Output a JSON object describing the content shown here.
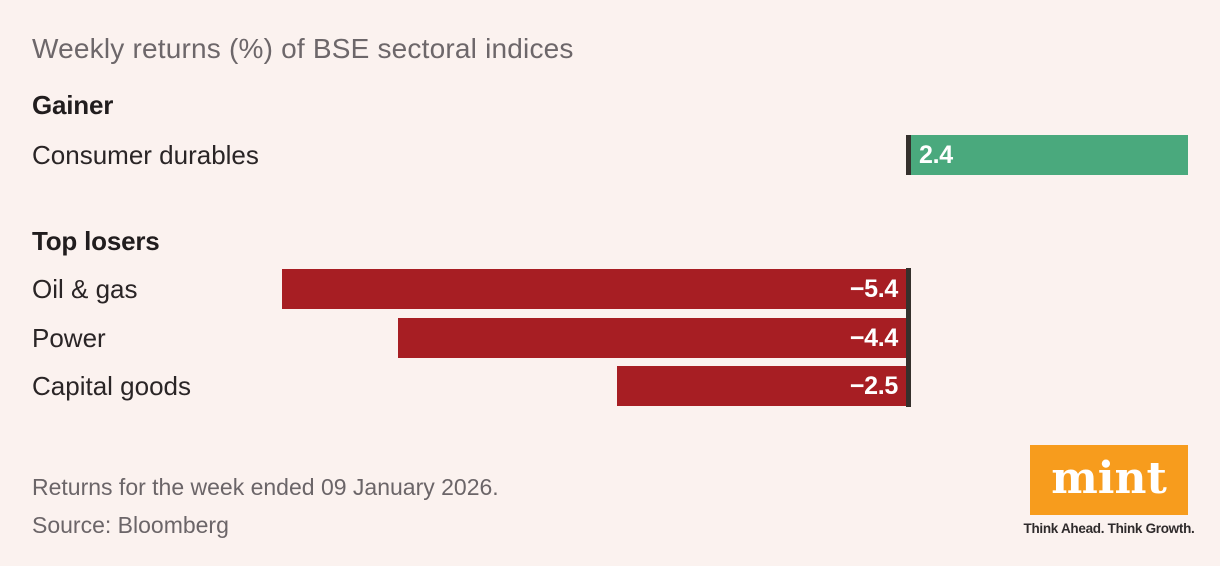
{
  "title": "Weekly returns (%) of BSE sectoral indices",
  "chart_data": {
    "type": "bar",
    "orientation": "horizontal",
    "title": "Weekly returns (%) of BSE sectoral indices",
    "unit": "%",
    "baseline": 0,
    "x_range_implied": [
      -5.4,
      2.4
    ],
    "axis_color": "#35302c",
    "groups": [
      {
        "heading": "Gainer",
        "bar_color": "#4aa97d",
        "rows": [
          {
            "label": "Consumer durables",
            "value": 2.4,
            "value_label": "2.4"
          }
        ]
      },
      {
        "heading": "Top losers",
        "bar_color": "#a71e23",
        "rows": [
          {
            "label": "Oil & gas",
            "value": -5.4,
            "value_label": "−5.4"
          },
          {
            "label": "Power",
            "value": -4.4,
            "value_label": "−4.4"
          },
          {
            "label": "Capital goods",
            "value": -2.5,
            "value_label": "−2.5"
          }
        ]
      }
    ]
  },
  "footer": {
    "note": "Returns for the week ended 09 January 2026.",
    "source": "Source: Bloomberg"
  },
  "logo": {
    "text": "mint",
    "tagline": "Think Ahead. Think Growth.",
    "bg_color": "#f79c1d"
  },
  "colors": {
    "background": "#fbf2ef",
    "gainer_green": "#4aa97d",
    "loser_red": "#a71e23",
    "axis_dark": "#35302c",
    "logo_orange": "#f79c1d",
    "title_gray": "#6d676a"
  }
}
